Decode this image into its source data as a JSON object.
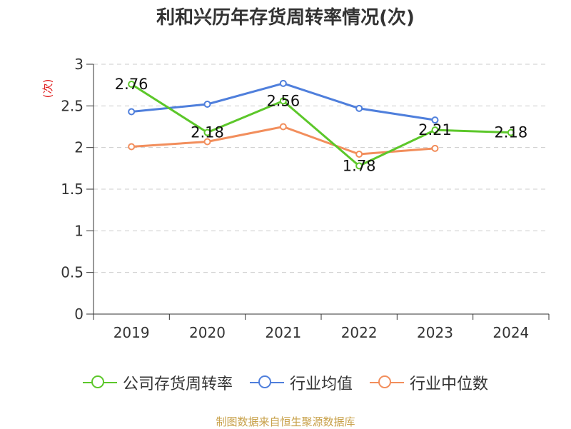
{
  "chart_data": {
    "type": "line",
    "title": "利和兴历年存货周转率情况(次)",
    "ylabel": "(次)",
    "categories": [
      "2019",
      "2020",
      "2021",
      "2022",
      "2023",
      "2024"
    ],
    "ylim": [
      0,
      3
    ],
    "yticks": [
      "0",
      "0.5",
      "1",
      "1.5",
      "2",
      "2.5",
      "3"
    ],
    "grid": true,
    "legend_position": "bottom",
    "series": [
      {
        "name": "公司存货周转率",
        "color": "#5cc72a",
        "values": [
          2.76,
          2.18,
          2.56,
          1.78,
          2.21,
          2.18
        ],
        "labels": [
          "2.76",
          "2.18",
          "2.56",
          "1.78",
          "2.21",
          "2.18"
        ]
      },
      {
        "name": "行业均值",
        "color": "#4f7fdc",
        "values": [
          2.43,
          2.52,
          2.77,
          2.47,
          2.33,
          null
        ]
      },
      {
        "name": "行业中位数",
        "color": "#f28e5c",
        "values": [
          2.01,
          2.07,
          2.25,
          1.92,
          1.99,
          null
        ]
      }
    ]
  },
  "source_text": "制图数据来自恒生聚源数据库"
}
